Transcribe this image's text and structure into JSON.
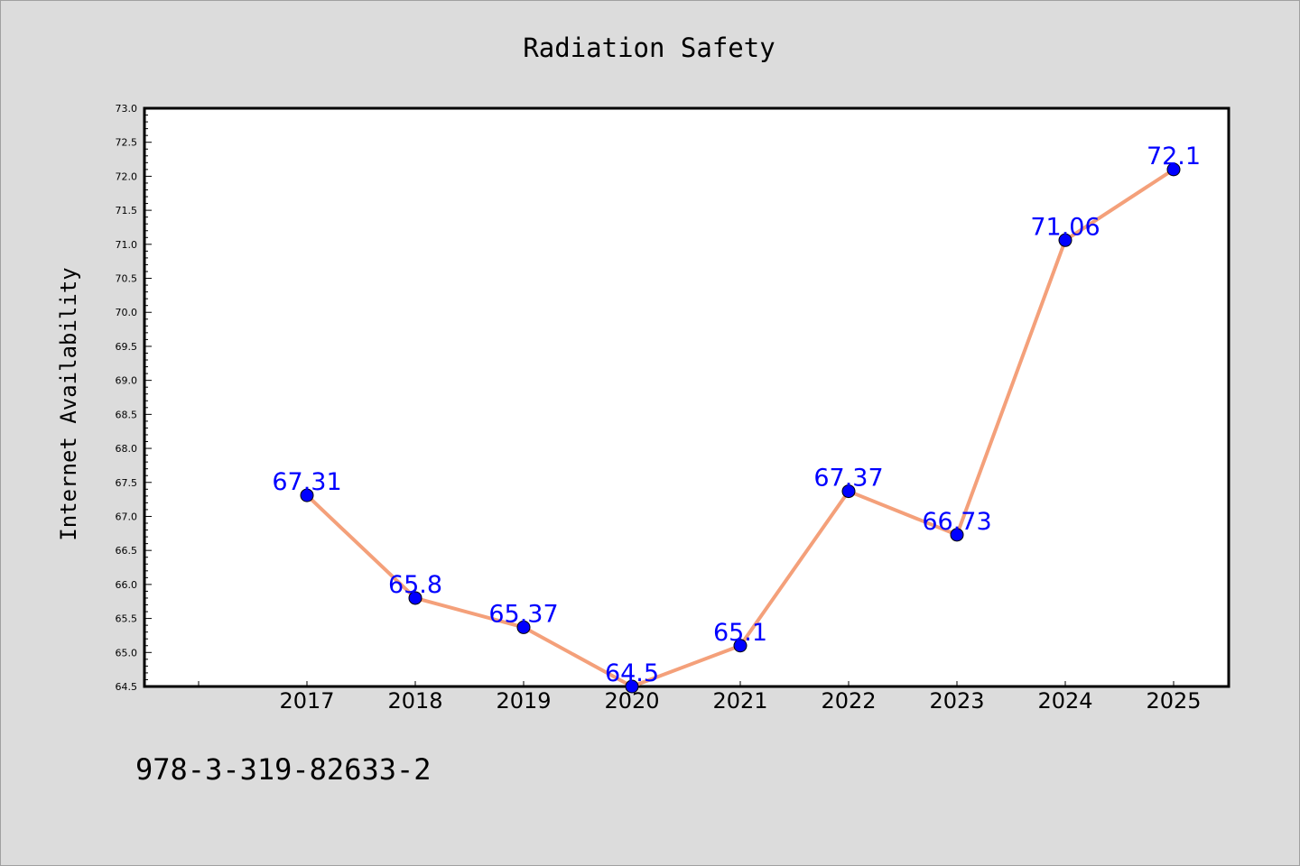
{
  "chart_data": {
    "type": "line",
    "title": "Radiation Safety",
    "ylabel": "Internet Availability",
    "xlabel": "",
    "categories": [
      "2017",
      "2018",
      "2019",
      "2020",
      "2021",
      "2022",
      "2023",
      "2024",
      "2025"
    ],
    "values": [
      67.31,
      65.8,
      65.37,
      64.5,
      65.1,
      67.37,
      66.73,
      71.06,
      72.1
    ],
    "data_labels": [
      "67.31",
      "65.8",
      "65.37",
      "64.5",
      "65.1",
      "67.37",
      "66.73",
      "71.06",
      "72.1"
    ],
    "ylim": [
      64.5,
      73.0
    ],
    "ytick_step": 0.5,
    "line_color": "#f4a07a",
    "marker_color": "#0000ff",
    "label_color": "#0000ff",
    "grid": false,
    "legend": "none"
  },
  "caption": "978-3-319-82633-2"
}
